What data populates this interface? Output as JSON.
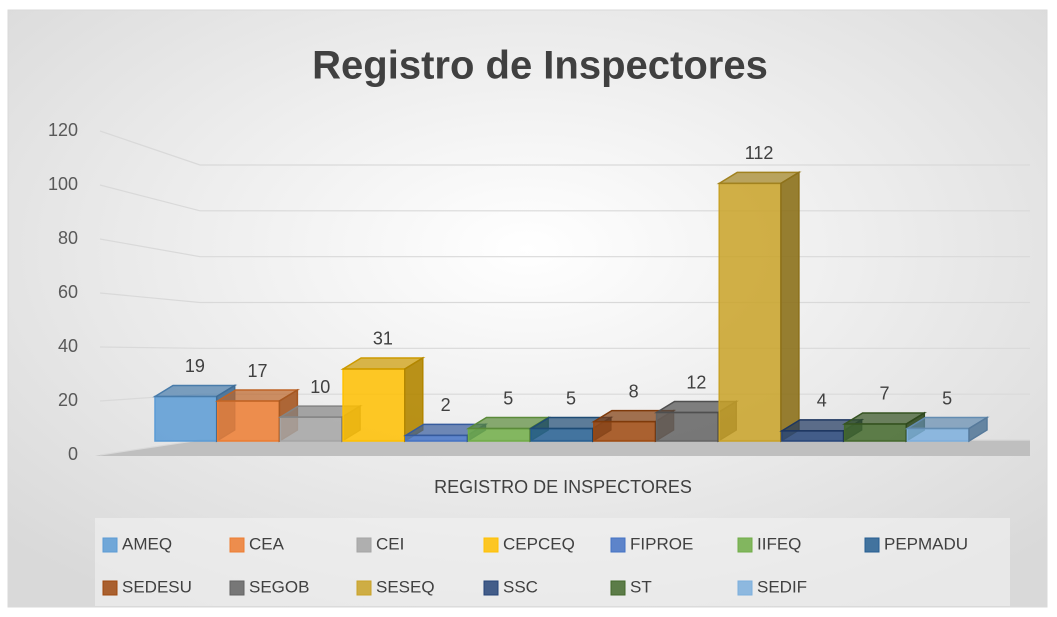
{
  "chart_data": {
    "type": "bar3d",
    "title": "Registro de Inspectores",
    "categories": [
      "REGISTRO DE INSPECTORES"
    ],
    "ylim": [
      0,
      120
    ],
    "yticks": [
      0,
      20,
      40,
      60,
      80,
      100,
      120
    ],
    "grid": true,
    "legend": "bottom",
    "series": [
      {
        "name": "AMEQ",
        "color": "#5b9bd5",
        "values": [
          19
        ]
      },
      {
        "name": "CEA",
        "color": "#ed7d31",
        "values": [
          17
        ]
      },
      {
        "name": "CEI",
        "color": "#a5a5a5",
        "values": [
          10
        ]
      },
      {
        "name": "CEPCEQ",
        "color": "#ffc000",
        "values": [
          31
        ]
      },
      {
        "name": "FIPROE",
        "color": "#4472c4",
        "values": [
          2
        ]
      },
      {
        "name": "IIFEQ",
        "color": "#70ad47",
        "values": [
          5
        ]
      },
      {
        "name": "PEPMADU",
        "color": "#255e91",
        "values": [
          5
        ]
      },
      {
        "name": "SEDESU",
        "color": "#9e480e",
        "values": [
          8
        ]
      },
      {
        "name": "SEGOB",
        "color": "#636363",
        "values": [
          12
        ]
      },
      {
        "name": "SESEQ",
        "color": "#c9a227",
        "values": [
          112
        ]
      },
      {
        "name": "SSC",
        "color": "#264478",
        "values": [
          4
        ]
      },
      {
        "name": "ST",
        "color": "#43682b",
        "values": [
          7
        ]
      },
      {
        "name": "SEDIF",
        "color": "#7cafdd",
        "values": [
          5
        ]
      }
    ]
  }
}
